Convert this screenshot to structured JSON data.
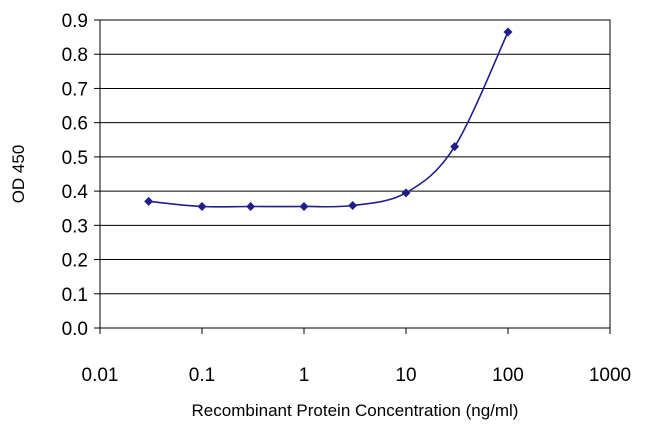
{
  "chart_data": {
    "type": "scatter",
    "title": "",
    "xlabel": "Recombinant Protein Concentration (ng/ml)",
    "ylabel": "OD 450",
    "x_scale": "log",
    "xlim": [
      0.01,
      1000
    ],
    "ylim": [
      0.0,
      0.9
    ],
    "x_ticks": [
      0.01,
      0.1,
      1,
      10,
      100,
      1000
    ],
    "x_tick_labels": [
      "0.01",
      "0.1",
      "1",
      "10",
      "100",
      "1000"
    ],
    "y_ticks": [
      0.0,
      0.1,
      0.2,
      0.3,
      0.4,
      0.5,
      0.6,
      0.7,
      0.8,
      0.9
    ],
    "y_tick_labels": [
      "0.0",
      "0.1",
      "0.2",
      "0.3",
      "0.4",
      "0.5",
      "0.6",
      "0.7",
      "0.8",
      "0.9"
    ],
    "grid": "horizontal",
    "legend": "none",
    "series": [
      {
        "color": "#1f1f8a",
        "x": [
          0.03,
          0.1,
          0.3,
          1,
          3,
          10,
          30,
          100
        ],
        "y": [
          0.37,
          0.355,
          0.355,
          0.355,
          0.358,
          0.395,
          0.53,
          0.865
        ],
        "fit_curve": true
      }
    ]
  }
}
